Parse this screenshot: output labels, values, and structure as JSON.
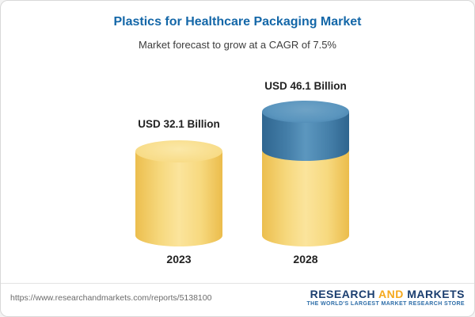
{
  "chart": {
    "title": "Plastics for Healthcare Packaging Market",
    "subtitle": "Market forecast to grow at a CAGR of 7.5%"
  },
  "chart_data": {
    "type": "bar",
    "categories": [
      "2023",
      "2028"
    ],
    "values": [
      32.1,
      46.1
    ],
    "unit": "USD Billion",
    "value_labels": [
      "USD 32.1 Billion",
      "USD 46.1 Billion"
    ],
    "title": "Plastics for Healthcare Packaging Market",
    "subtitle": "Market forecast to grow at a CAGR of 7.5%",
    "cagr_percent": 7.5,
    "legend_position": "none",
    "grid": false,
    "colors": {
      "base_segment": "#F6D87D",
      "growth_segment": "#457FA9",
      "title_text": "#1467A8"
    },
    "notes": "2028 cylinder shows base (yellow) plus incremental growth (blue) stacked segment"
  },
  "footer": {
    "url": "https://www.researchandmarkets.com/reports/5138100",
    "logo": {
      "research": "RESEARCH ",
      "and": "AND",
      "markets": " MARKETS",
      "tagline": "THE WORLD'S LARGEST MARKET RESEARCH STORE"
    }
  }
}
